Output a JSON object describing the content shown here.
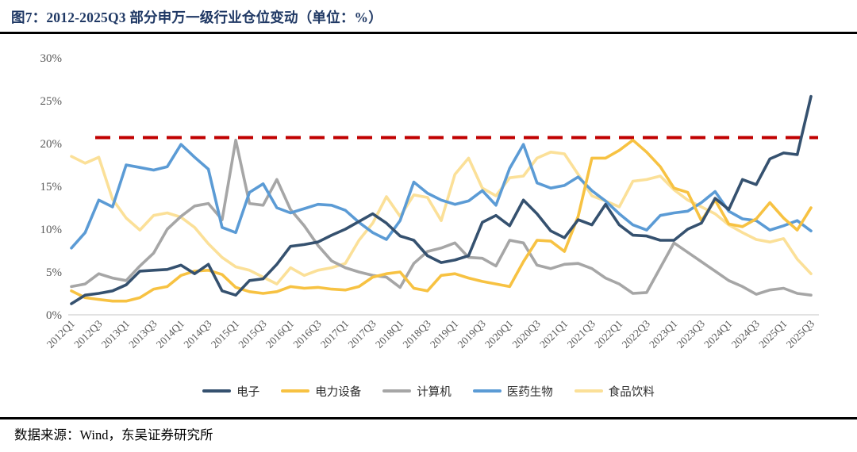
{
  "header": {
    "title": "图7：2012-2025Q3 部分申万一级行业仓位变动（单位：%）"
  },
  "footer": {
    "source": "数据来源：Wind，东吴证券研究所"
  },
  "chart_data": {
    "type": "line",
    "title": "图7：2012-2025Q3 部分申万一级行业仓位变动（单位：%）",
    "xlabel": "",
    "ylabel": "",
    "ylim": [
      0,
      30
    ],
    "grid": false,
    "legend_position": "bottom",
    "y_ticks": [
      "0%",
      "5%",
      "10%",
      "15%",
      "20%",
      "25%",
      "30%"
    ],
    "x_tick_step": 2,
    "x": [
      "2012Q1",
      "2012Q2",
      "2012Q3",
      "2012Q4",
      "2013Q1",
      "2013Q2",
      "2013Q3",
      "2013Q4",
      "2014Q1",
      "2014Q2",
      "2014Q3",
      "2014Q4",
      "2015Q1",
      "2015Q2",
      "2015Q3",
      "2015Q4",
      "2016Q1",
      "2016Q2",
      "2016Q3",
      "2016Q4",
      "2017Q1",
      "2017Q2",
      "2017Q3",
      "2017Q4",
      "2018Q1",
      "2018Q2",
      "2018Q3",
      "2018Q4",
      "2019Q1",
      "2019Q2",
      "2019Q3",
      "2019Q4",
      "2020Q1",
      "2020Q2",
      "2020Q3",
      "2020Q4",
      "2021Q1",
      "2021Q2",
      "2021Q3",
      "2021Q4",
      "2022Q1",
      "2022Q2",
      "2022Q3",
      "2022Q4",
      "2023Q1",
      "2023Q2",
      "2023Q3",
      "2023Q4",
      "2024Q1",
      "2024Q2",
      "2024Q3",
      "2024Q4",
      "2025Q1",
      "2025Q2",
      "2025Q3"
    ],
    "threshold_line": {
      "value": 20.7,
      "color": "#C00000",
      "style": "dashed"
    },
    "series": [
      {
        "name": "电子",
        "color": "#35516F",
        "values": [
          1.3,
          2.3,
          2.5,
          2.8,
          3.5,
          5.1,
          5.2,
          5.3,
          5.8,
          4.8,
          5.9,
          2.8,
          2.3,
          4.0,
          4.2,
          5.9,
          8.0,
          8.2,
          8.5,
          9.3,
          10.0,
          10.9,
          11.8,
          10.7,
          9.2,
          8.7,
          6.9,
          6.1,
          6.4,
          6.9,
          10.8,
          11.6,
          10.4,
          13.4,
          11.8,
          9.8,
          9.0,
          11.1,
          10.5,
          12.9,
          10.5,
          9.3,
          9.2,
          8.7,
          8.7,
          10.0,
          10.7,
          13.6,
          12.3,
          15.8,
          15.2,
          18.2,
          18.9,
          18.7,
          25.5
        ]
      },
      {
        "name": "电力设备",
        "color": "#F7C242",
        "values": [
          2.8,
          2.0,
          1.8,
          1.6,
          1.6,
          2.0,
          3.0,
          3.3,
          4.6,
          5.1,
          5.2,
          4.7,
          3.2,
          2.7,
          2.5,
          2.7,
          3.3,
          3.1,
          3.2,
          3.0,
          2.9,
          3.3,
          4.4,
          4.8,
          5.0,
          3.1,
          2.8,
          4.6,
          4.8,
          4.3,
          3.9,
          3.6,
          3.3,
          6.2,
          8.7,
          8.6,
          7.4,
          11.5,
          18.3,
          18.3,
          19.2,
          20.4,
          19.0,
          17.3,
          14.8,
          14.3,
          11.0,
          13.4,
          10.6,
          10.3,
          11.2,
          13.1,
          11.3,
          9.9,
          12.5
        ]
      },
      {
        "name": "计算机",
        "color": "#A6A6A6",
        "values": [
          3.3,
          3.6,
          4.8,
          4.3,
          4.0,
          5.7,
          7.2,
          10.0,
          11.5,
          12.7,
          13.0,
          11.1,
          20.4,
          13.0,
          12.8,
          15.8,
          12.3,
          10.4,
          8.1,
          6.3,
          5.5,
          5.0,
          4.6,
          4.4,
          3.2,
          6.0,
          7.4,
          7.8,
          8.4,
          6.7,
          6.6,
          5.7,
          8.7,
          8.4,
          5.8,
          5.4,
          5.9,
          6.0,
          5.4,
          4.3,
          3.6,
          2.5,
          2.6,
          5.5,
          8.4,
          7.3,
          6.2,
          5.1,
          4.0,
          3.3,
          2.4,
          2.9,
          3.1,
          2.5,
          2.3
        ]
      },
      {
        "name": "医药生物",
        "color": "#5B9BD5",
        "values": [
          7.8,
          9.6,
          13.4,
          12.6,
          17.5,
          17.2,
          16.9,
          17.3,
          19.9,
          18.4,
          17.0,
          10.2,
          9.6,
          14.3,
          15.3,
          12.5,
          11.9,
          12.4,
          12.9,
          12.8,
          12.2,
          10.8,
          9.6,
          8.8,
          11.0,
          15.5,
          14.2,
          13.4,
          12.9,
          13.3,
          14.5,
          12.8,
          17.1,
          19.9,
          15.4,
          14.8,
          15.1,
          16.1,
          14.5,
          13.3,
          11.8,
          10.5,
          9.9,
          11.6,
          11.9,
          12.1,
          13.1,
          14.4,
          12.1,
          11.2,
          11.0,
          9.9,
          10.4,
          11.0,
          9.8
        ]
      },
      {
        "name": "食品饮料",
        "color": "#FBE098",
        "values": [
          18.5,
          17.7,
          18.4,
          13.5,
          11.3,
          9.9,
          11.6,
          11.9,
          11.4,
          10.2,
          8.3,
          6.7,
          5.6,
          5.2,
          4.4,
          3.6,
          5.5,
          4.6,
          5.2,
          5.5,
          6.0,
          8.7,
          10.7,
          13.8,
          11.5,
          14.0,
          13.7,
          11.0,
          16.4,
          18.3,
          14.8,
          13.9,
          16.0,
          16.2,
          18.3,
          19.0,
          18.8,
          16.4,
          13.9,
          13.3,
          12.6,
          15.6,
          15.8,
          16.2,
          14.6,
          13.4,
          12.6,
          11.8,
          10.5,
          9.6,
          8.8,
          8.5,
          8.9,
          6.5,
          4.8
        ]
      }
    ]
  }
}
